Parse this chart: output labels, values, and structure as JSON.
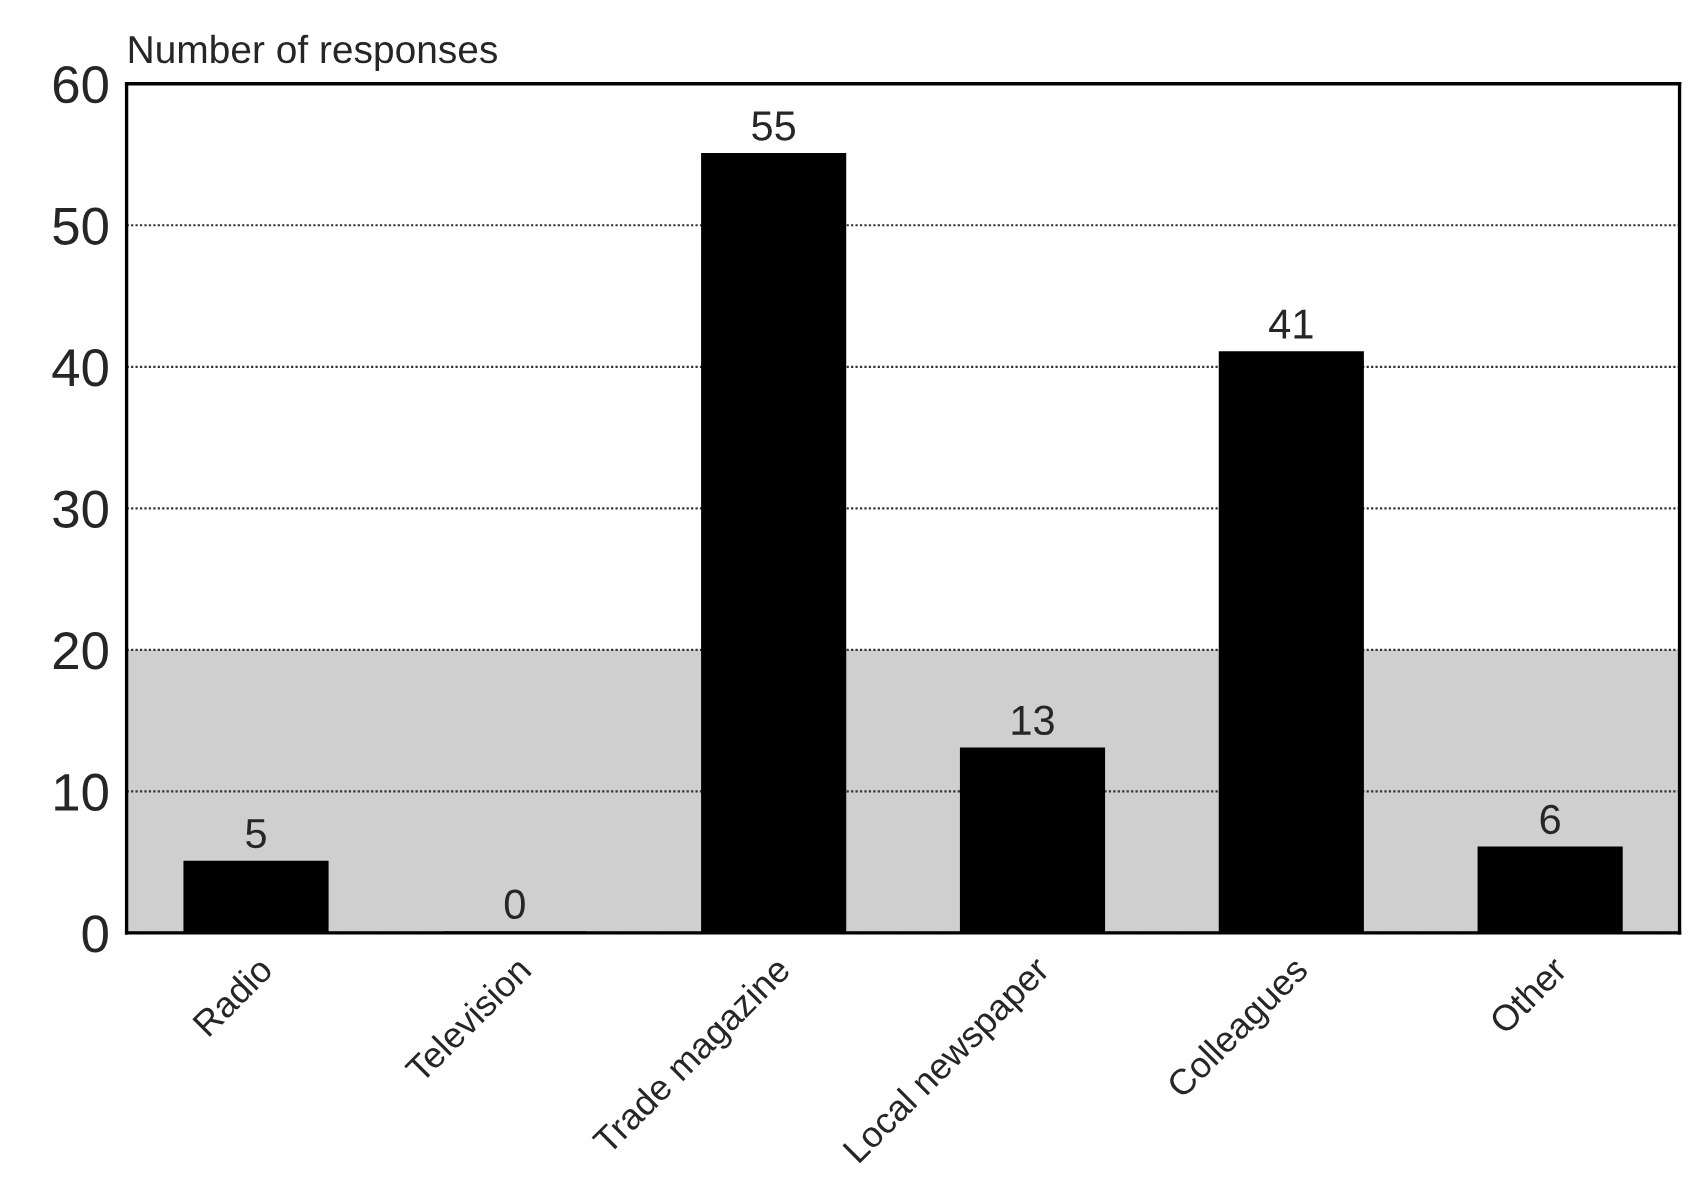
{
  "chart_data": {
    "type": "bar",
    "ylabel": "Number of responses",
    "categories": [
      "Radio",
      "Television",
      "Trade magazine",
      "Local newspaper",
      "Colleagues",
      "Other"
    ],
    "values": [
      5,
      0,
      55,
      13,
      41,
      6
    ],
    "color": "#000000",
    "ylim": [
      0,
      60
    ],
    "yticks": [
      0,
      10,
      20,
      30,
      40,
      50,
      60
    ],
    "grid": "y",
    "data_labels": true,
    "bands": [
      {
        "axis": "y",
        "from": 0,
        "to": 20,
        "color": "#cfcfcf"
      }
    ]
  }
}
